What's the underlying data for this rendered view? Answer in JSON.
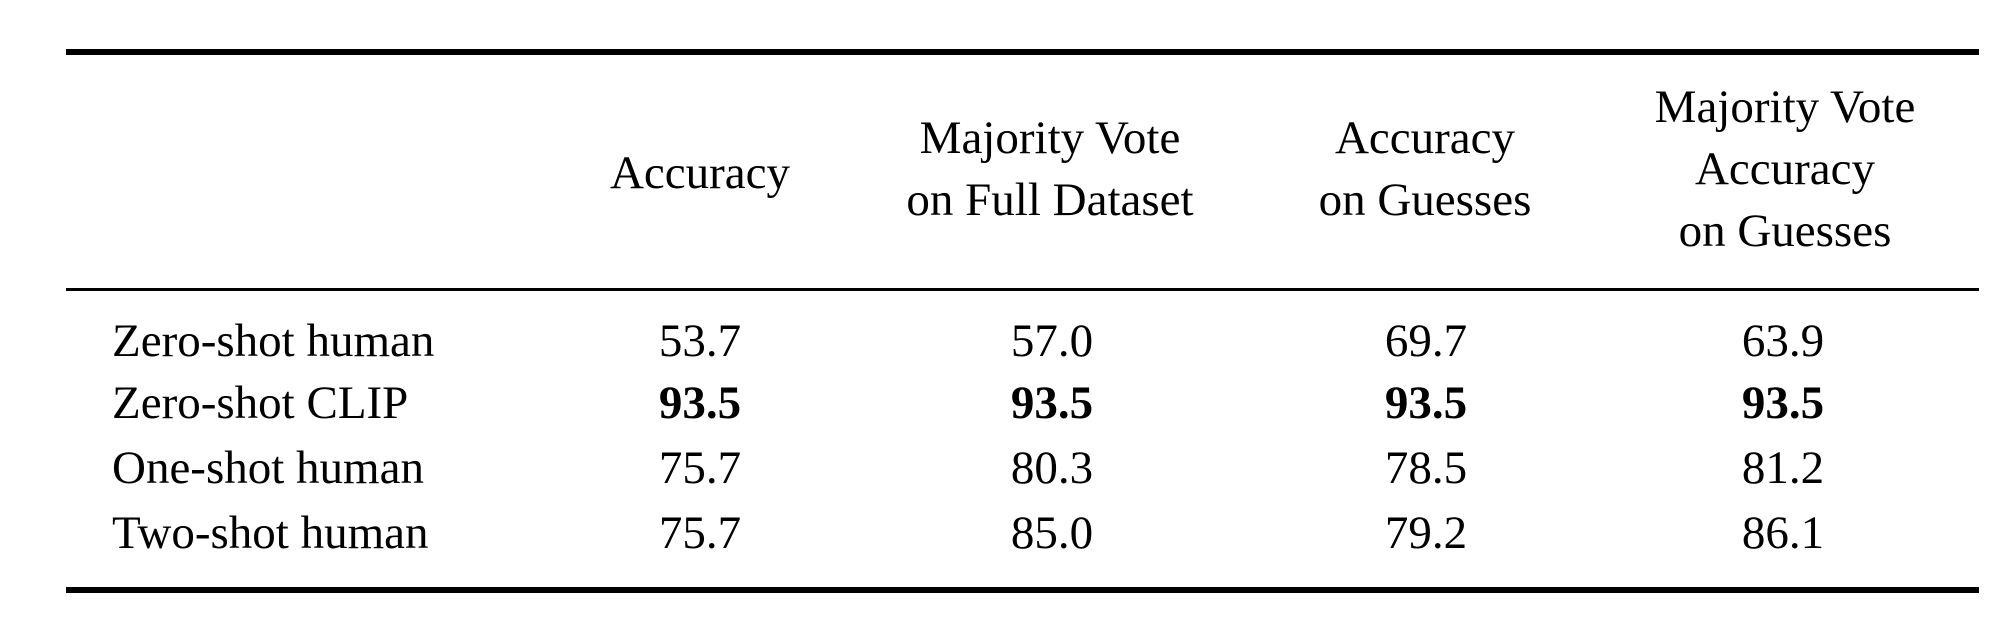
{
  "table": {
    "columns": [
      {
        "lines": [
          "Accuracy"
        ]
      },
      {
        "lines": [
          "Majority Vote",
          "on Full Dataset"
        ]
      },
      {
        "lines": [
          "Accuracy",
          "on Guesses"
        ]
      },
      {
        "lines": [
          "Majority Vote",
          "Accuracy",
          "on Guesses"
        ]
      }
    ],
    "rows": [
      {
        "label": "Zero-shot human",
        "values": [
          "53.7",
          "57.0",
          "69.7",
          "63.9"
        ],
        "bold": false
      },
      {
        "label": "Zero-shot CLIP",
        "values": [
          "93.5",
          "93.5",
          "93.5",
          "93.5"
        ],
        "bold": true
      },
      {
        "label": "One-shot human",
        "values": [
          "75.7",
          "80.3",
          "78.5",
          "81.2"
        ],
        "bold": false
      },
      {
        "label": "Two-shot human",
        "values": [
          "75.7",
          "85.0",
          "79.2",
          "86.1"
        ],
        "bold": false
      }
    ]
  }
}
